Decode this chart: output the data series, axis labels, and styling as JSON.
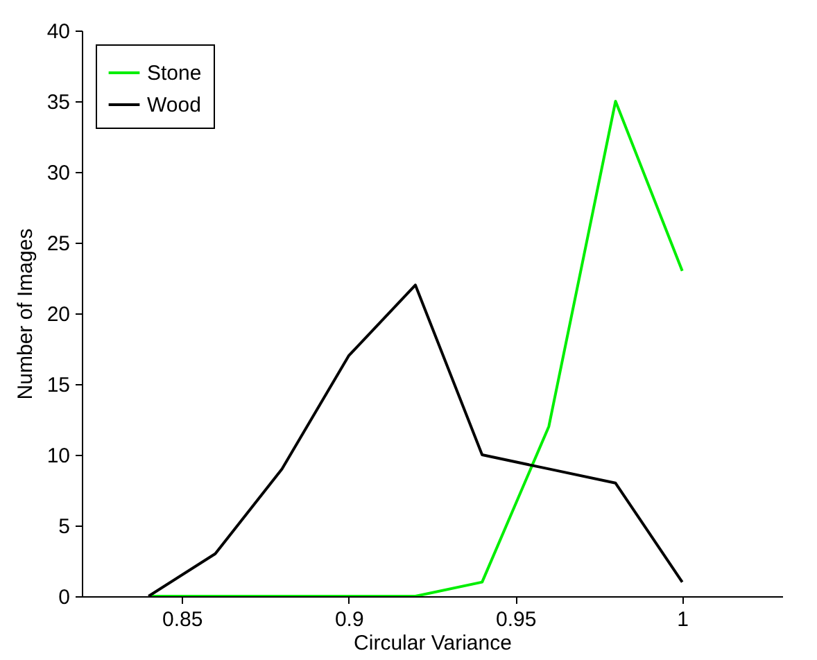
{
  "chart_data": {
    "type": "line",
    "xlabel": "Circular Variance",
    "ylabel": "Number of Images",
    "x": [
      0.84,
      0.86,
      0.88,
      0.9,
      0.92,
      0.94,
      0.96,
      0.98,
      1.0
    ],
    "series": [
      {
        "name": "Stone",
        "color": "#00ee00",
        "values": [
          0,
          0,
          0,
          0,
          0,
          1,
          12,
          35,
          23
        ]
      },
      {
        "name": "Wood",
        "color": "#000000",
        "values": [
          0,
          3,
          9,
          17,
          22,
          10,
          9,
          8,
          1
        ]
      }
    ],
    "xlim": [
      0.82,
      1.03
    ],
    "xticks": [
      0.85,
      0.9,
      0.95,
      1
    ],
    "ylim": [
      0,
      40
    ],
    "yticks": [
      0,
      5,
      10,
      15,
      20,
      25,
      30,
      35,
      40
    ],
    "grid": false,
    "legend": "top left",
    "marker": "none",
    "line_style": "solid"
  }
}
